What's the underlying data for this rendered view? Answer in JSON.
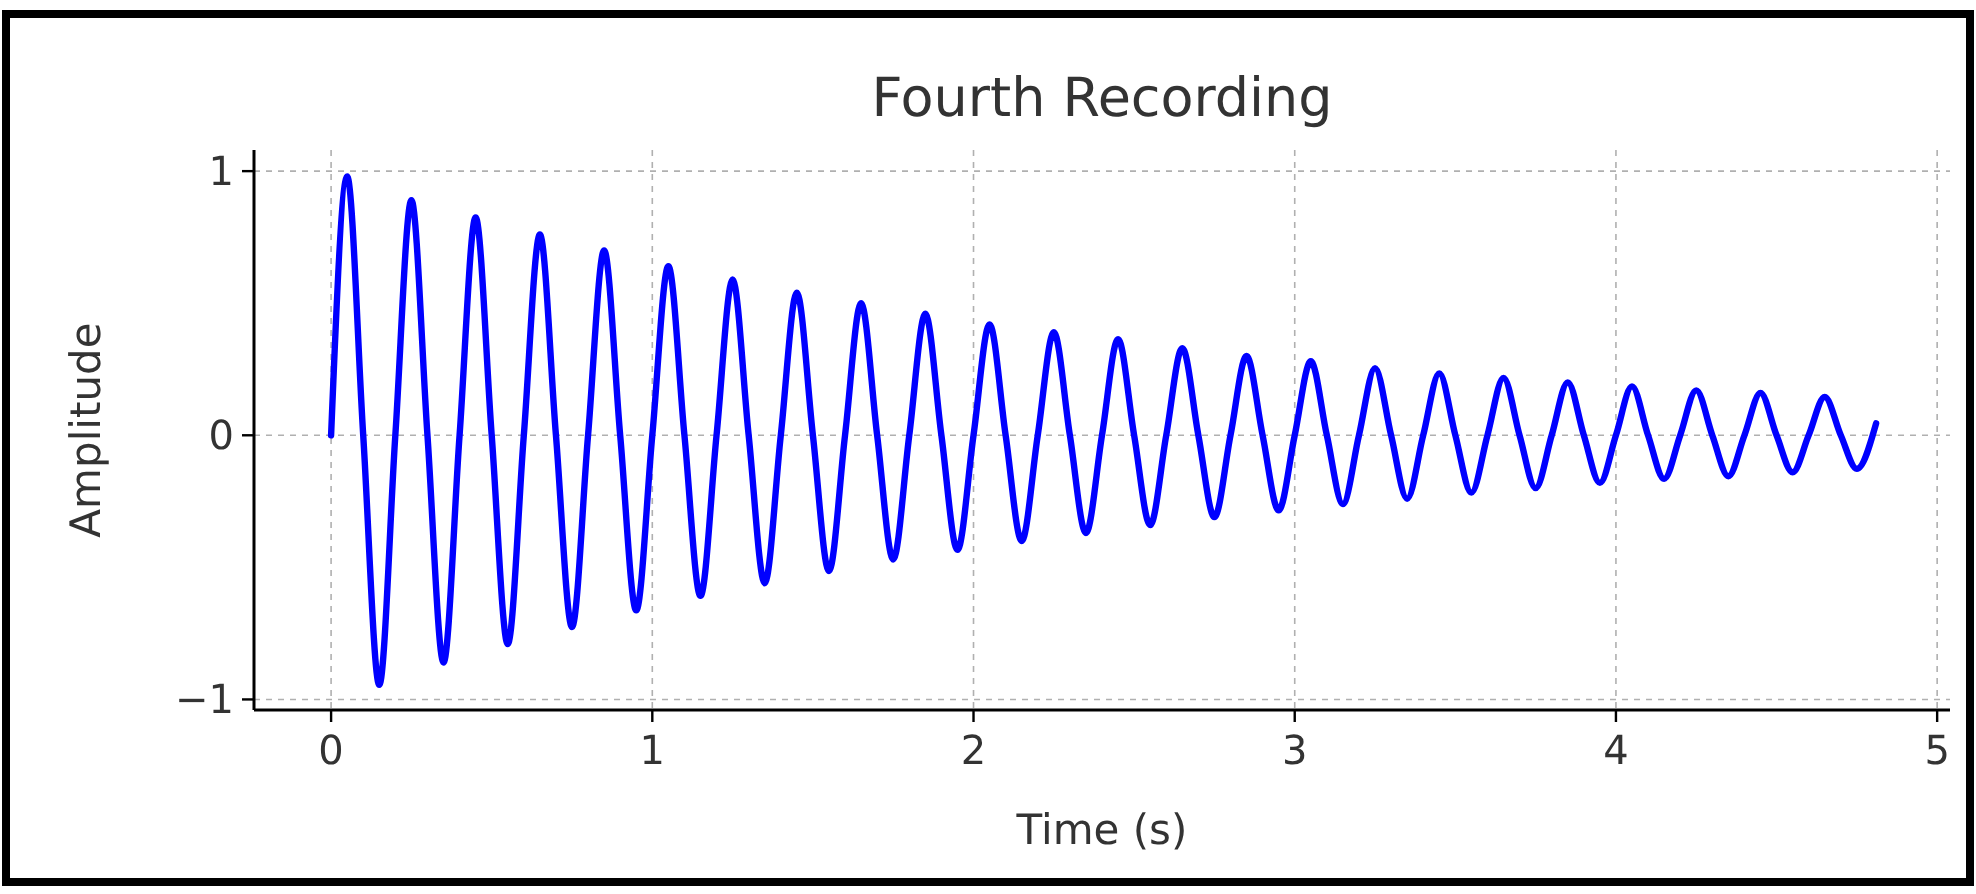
{
  "chart_data": {
    "type": "line",
    "title": "Fourth Recording",
    "xlabel": "Time (s)",
    "ylabel": "Amplitude",
    "xlim": [
      -0.24,
      5.04
    ],
    "xticks": [
      0,
      1,
      2,
      3,
      4,
      5
    ],
    "ylim": [
      -1.04,
      1.08
    ],
    "yticks": [
      {
        "value": -1,
        "label": "−1"
      },
      0,
      1
    ],
    "grid": true,
    "marker": "none",
    "line_style": "solid",
    "series": [
      {
        "color": "#0000ff",
        "x": [
          0,
          0.05,
          0.1,
          0.15,
          0.2,
          0.25,
          0.3,
          0.35,
          0.4,
          0.45,
          0.5,
          0.55,
          0.6,
          0.65,
          0.7,
          0.75,
          0.8,
          0.85,
          0.9,
          0.95,
          1.0,
          1.05,
          1.1,
          1.15,
          1.2,
          1.25,
          1.3,
          1.35,
          1.4,
          1.45,
          1.5,
          1.55,
          1.6,
          1.65,
          1.7,
          1.75,
          1.8,
          1.85,
          1.9,
          1.95,
          2.0,
          2.05,
          2.1,
          2.15,
          2.2,
          2.25,
          2.3,
          2.35,
          2.4,
          2.45,
          2.5,
          2.55,
          2.6,
          2.65,
          2.7,
          2.75,
          2.8,
          2.85,
          2.9,
          2.95,
          3.0,
          3.05,
          3.1,
          3.15,
          3.2,
          3.25,
          3.3,
          3.35,
          3.4,
          3.45,
          3.5,
          3.55,
          3.6,
          3.65,
          3.7,
          3.75,
          3.8,
          3.85,
          3.9,
          3.95,
          4.0,
          4.05,
          4.1,
          4.15,
          4.2,
          4.25,
          4.3,
          4.35,
          4.4,
          4.45,
          4.5,
          4.55,
          4.6,
          4.65,
          4.7,
          4.75,
          4.81
        ],
        "values": [
          0,
          0.98,
          0,
          -0.945,
          0,
          0.89,
          0,
          -0.86,
          0,
          0.825,
          0,
          -0.79,
          0,
          0.76,
          0,
          -0.726,
          0,
          0.7,
          0,
          -0.663,
          0,
          0.64,
          0,
          -0.608,
          0,
          0.59,
          0,
          -0.56,
          0,
          0.54,
          0,
          -0.514,
          0,
          0.5,
          0,
          -0.47,
          0,
          0.46,
          0,
          -0.434,
          0,
          0.42,
          0,
          -0.4,
          0,
          0.39,
          0,
          -0.37,
          0,
          0.364,
          0,
          -0.34,
          0,
          0.33,
          0,
          -0.31,
          0,
          0.3,
          0,
          -0.284,
          0,
          0.28,
          0,
          -0.26,
          0,
          0.254,
          0,
          -0.24,
          0,
          0.234,
          0,
          -0.217,
          0,
          0.217,
          0,
          -0.2,
          0,
          0.2,
          0,
          -0.18,
          0,
          0.185,
          0,
          -0.165,
          0,
          0.17,
          0,
          -0.155,
          0,
          0.16,
          0,
          -0.14,
          0,
          0.145,
          0,
          -0.127,
          0.045
        ]
      }
    ]
  }
}
